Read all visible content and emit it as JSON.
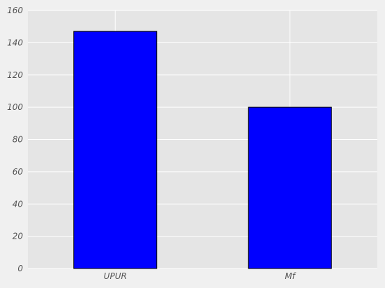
{
  "chart_data": {
    "type": "bar",
    "title": "",
    "xlabel": "",
    "ylabel": "",
    "categories": [
      "UPUR",
      "Mf"
    ],
    "values": [
      147,
      100
    ],
    "ylim": [
      0,
      160
    ],
    "yticks": [
      0,
      20,
      40,
      60,
      80,
      100,
      120,
      140,
      160
    ],
    "grid": true,
    "legend": "none",
    "colors": {
      "bar_fill": "#0000ff",
      "bar_edge": "#000000",
      "plot_background": "#e5e5e5",
      "figure_background": "#f0f0f0",
      "grid": "#ffffff",
      "tick_text": "#555555"
    }
  }
}
